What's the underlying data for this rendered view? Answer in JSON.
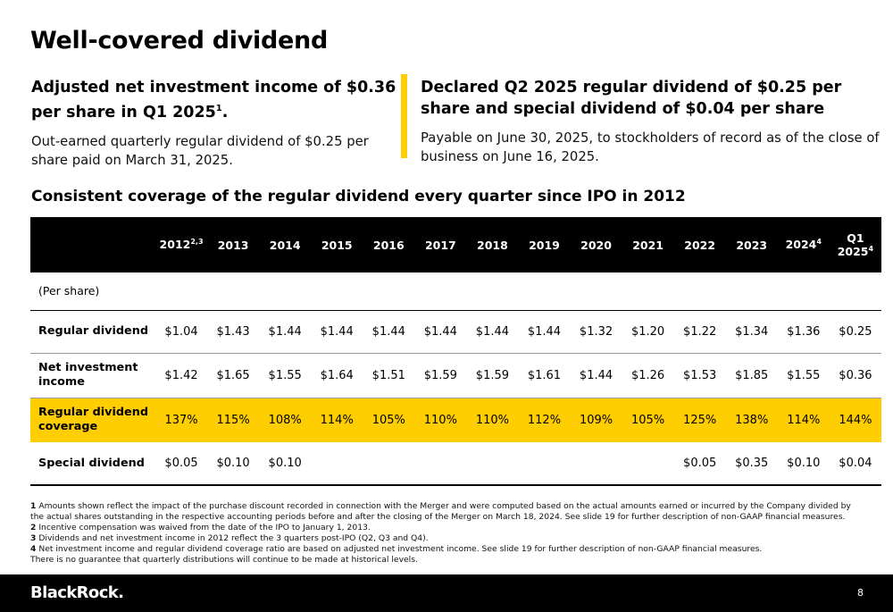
{
  "title": "Well-covered dividend",
  "left": {
    "heading": "Adjusted net investment income of $0.36 per share in Q1 2025",
    "heading_sup": "1",
    "heading_end": ".",
    "body": "Out-earned quarterly regular dividend of $0.25 per share paid on March 31, 2025."
  },
  "right": {
    "heading": "Declared Q2 2025 regular dividend of $0.25 per share and special dividend of $0.04 per share",
    "body": "Payable on June 30, 2025, to stockholders of record as of the close of business on June 16, 2025."
  },
  "accent_color": "#ffce00",
  "subheading": "Consistent coverage of the regular dividend every quarter since IPO in 2012",
  "table": {
    "columns": [
      {
        "label": "2012",
        "sup": "2,3"
      },
      {
        "label": "2013",
        "sup": ""
      },
      {
        "label": "2014",
        "sup": ""
      },
      {
        "label": "2015",
        "sup": ""
      },
      {
        "label": "2016",
        "sup": ""
      },
      {
        "label": "2017",
        "sup": ""
      },
      {
        "label": "2018",
        "sup": ""
      },
      {
        "label": "2019",
        "sup": ""
      },
      {
        "label": "2020",
        "sup": ""
      },
      {
        "label": "2021",
        "sup": ""
      },
      {
        "label": "2022",
        "sup": ""
      },
      {
        "label": "2023",
        "sup": ""
      },
      {
        "label": "2024",
        "sup": "4"
      },
      {
        "label": "Q1 2025",
        "sup": "4"
      }
    ],
    "per_share": "(Per share)",
    "rows": [
      {
        "label": "Regular dividend",
        "values": [
          "$1.04",
          "$1.43",
          "$1.44",
          "$1.44",
          "$1.44",
          "$1.44",
          "$1.44",
          "$1.44",
          "$1.32",
          "$1.20",
          "$1.22",
          "$1.34",
          "$1.36",
          "$0.25"
        ]
      },
      {
        "label": "Net investment income",
        "values": [
          "$1.42",
          "$1.65",
          "$1.55",
          "$1.64",
          "$1.51",
          "$1.59",
          "$1.59",
          "$1.61",
          "$1.44",
          "$1.26",
          "$1.53",
          "$1.85",
          "$1.55",
          "$0.36"
        ]
      },
      {
        "label": "Regular dividend coverage",
        "values": [
          "137%",
          "115%",
          "108%",
          "114%",
          "105%",
          "110%",
          "110%",
          "112%",
          "109%",
          "105%",
          "125%",
          "138%",
          "114%",
          "144%"
        ]
      },
      {
        "label": "Special dividend",
        "values": [
          "$0.05",
          "$0.10",
          "$0.10",
          "",
          "",
          "",
          "",
          "",
          "",
          "",
          "$0.05",
          "$0.35",
          "$0.10",
          "$0.04"
        ]
      }
    ]
  },
  "footnotes": [
    {
      "num": "1",
      "text": "Amounts shown reflect the impact of the purchase discount recorded in connection with the Merger and were computed based on the actual amounts earned or incurred by the Company divided by the actual shares outstanding in the respective accounting periods before and after the closing of the Merger on March 18, 2024. See slide 19 for further description of non-GAAP financial measures."
    },
    {
      "num": "2",
      "text": "Incentive compensation was waived from the date of the IPO to January 1, 2013."
    },
    {
      "num": "3",
      "text": "Dividends and net investment income in 2012 reflect the 3 quarters post-IPO (Q2, Q3 and Q4)."
    },
    {
      "num": "4",
      "text": "Net investment income and regular dividend coverage ratio are based on adjusted net investment income. See slide 19 for further description of non-GAAP financial measures."
    }
  ],
  "disclaimer": "There is no guarantee that quarterly distributions will continue to be made at historical levels.",
  "footer": {
    "logo": "BlackRock.",
    "page_number": "8"
  }
}
